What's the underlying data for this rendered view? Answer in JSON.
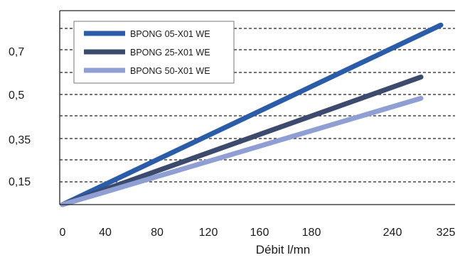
{
  "chart_data": {
    "type": "line",
    "xlabel": "Débit l/mn",
    "ylabel": "",
    "title": "",
    "x_ticks": [
      "0",
      "40",
      "80",
      "120",
      "160",
      "180",
      "240",
      "325"
    ],
    "y_ticks": [
      "0,15",
      "0,35",
      "0,5",
      "0,7"
    ],
    "grid": "horizontal dashed",
    "legend_position": "top-left",
    "series": [
      {
        "name": "BPONG 05-X01 WE",
        "color": "#2a5ca8",
        "points": [
          [
            0,
            0.0
          ],
          [
            325,
            0.8
          ]
        ]
      },
      {
        "name": "BPONG 25-X01 WE",
        "color": "#3c4a6e",
        "points": [
          [
            0,
            0.0
          ],
          [
            325,
            0.6
          ]
        ]
      },
      {
        "name": "BPONG 50-X01 WE",
        "color": "#8f9fd4",
        "points": [
          [
            0,
            0.0
          ],
          [
            325,
            0.5
          ]
        ]
      }
    ]
  }
}
